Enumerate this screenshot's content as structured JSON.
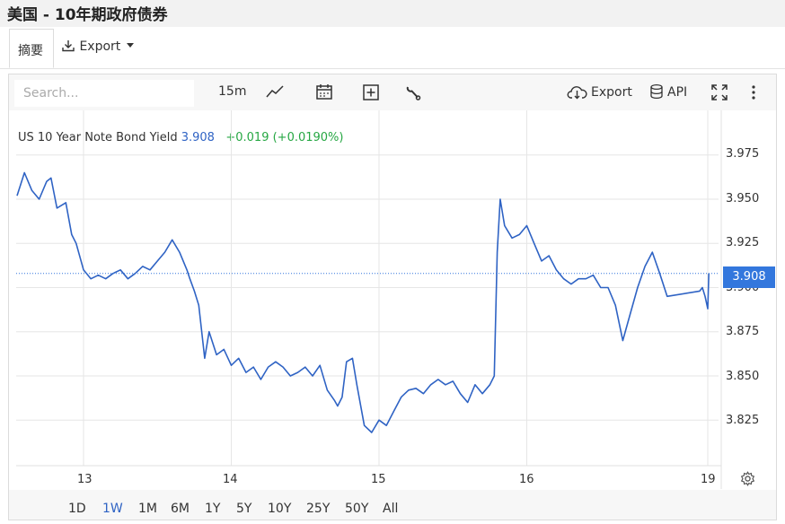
{
  "page": {
    "title": "美国 - 10年期政府债券"
  },
  "tabs": {
    "summary": "摘要",
    "export": "Export"
  },
  "toolbar": {
    "search_placeholder": "Search...",
    "interval": "15m",
    "export": "Export",
    "api": "API"
  },
  "legend": {
    "name": "US 10 Year Note Bond Yield",
    "value": "3.908",
    "change": "+0.019 (+0.0190%)"
  },
  "colors": {
    "line": "#2f63c4",
    "accent": "#3377dd",
    "positive": "#26a743"
  },
  "ranges": [
    "1D",
    "1W",
    "1M",
    "6M",
    "1Y",
    "5Y",
    "10Y",
    "25Y",
    "50Y",
    "All"
  ],
  "active_range": "1W",
  "chart_data": {
    "type": "line",
    "title": "US 10 Year Note Bond Yield",
    "last_value": 3.908,
    "ylim": [
      3.8,
      3.995
    ],
    "y_ticks": [
      "3.975",
      "3.950",
      "3.925",
      "3.900",
      "3.875",
      "3.850",
      "3.825"
    ],
    "x_ticks": [
      "13",
      "14",
      "15",
      "16",
      "19"
    ],
    "xlim": [
      12.55,
      19.05
    ],
    "grid": true,
    "series": [
      {
        "x": [
          12.55,
          12.6,
          12.65,
          12.7,
          12.75,
          12.78,
          12.82,
          12.88,
          12.92,
          12.95,
          13.0,
          13.05,
          13.1,
          13.15,
          13.2,
          13.25,
          13.3,
          13.35,
          13.4,
          13.45,
          13.5,
          13.55,
          13.6,
          13.65,
          13.7,
          13.72,
          13.75,
          13.78,
          13.82,
          13.85,
          13.9,
          13.95,
          14.0,
          14.05,
          14.1,
          14.15,
          14.2,
          14.25,
          14.3,
          14.35,
          14.4,
          14.45,
          14.5,
          14.55,
          14.6,
          14.65,
          14.7,
          14.72,
          14.75,
          14.78,
          14.82,
          14.85,
          14.9,
          14.95,
          15.0,
          15.05,
          15.1,
          15.15,
          15.2,
          15.25,
          15.3,
          15.35,
          15.4,
          15.45,
          15.5,
          15.55,
          15.6,
          15.65,
          15.7,
          15.75,
          15.78,
          15.8,
          15.82,
          15.85,
          15.9,
          15.95,
          16.0,
          16.05,
          16.1,
          16.15,
          16.2,
          16.25,
          16.3,
          16.35,
          16.4,
          16.45,
          16.5,
          16.55,
          16.6,
          16.65,
          16.7,
          16.75,
          16.8,
          16.85,
          16.9,
          16.95,
          18.85,
          18.9,
          18.95,
          19.0,
          19.02
        ],
        "y": [
          3.952,
          3.965,
          3.955,
          3.95,
          3.96,
          3.962,
          3.945,
          3.948,
          3.93,
          3.925,
          3.91,
          3.905,
          3.907,
          3.905,
          3.908,
          3.91,
          3.905,
          3.908,
          3.912,
          3.91,
          3.915,
          3.92,
          3.927,
          3.92,
          3.91,
          3.905,
          3.898,
          3.89,
          3.86,
          3.875,
          3.862,
          3.865,
          3.856,
          3.86,
          3.852,
          3.855,
          3.848,
          3.855,
          3.858,
          3.855,
          3.85,
          3.852,
          3.855,
          3.85,
          3.856,
          3.842,
          3.836,
          3.833,
          3.838,
          3.858,
          3.86,
          3.845,
          3.822,
          3.818,
          3.825,
          3.822,
          3.83,
          3.838,
          3.842,
          3.843,
          3.84,
          3.845,
          3.848,
          3.845,
          3.847,
          3.84,
          3.835,
          3.845,
          3.84,
          3.845,
          3.85,
          3.92,
          3.95,
          3.935,
          3.928,
          3.93,
          3.935,
          3.925,
          3.915,
          3.918,
          3.91,
          3.905,
          3.902,
          3.905,
          3.905,
          3.907,
          3.9,
          3.9,
          3.89,
          3.87,
          3.885,
          3.9,
          3.912,
          3.92,
          3.908,
          3.895,
          3.898,
          3.9,
          3.895,
          3.888,
          3.908
        ]
      }
    ]
  }
}
